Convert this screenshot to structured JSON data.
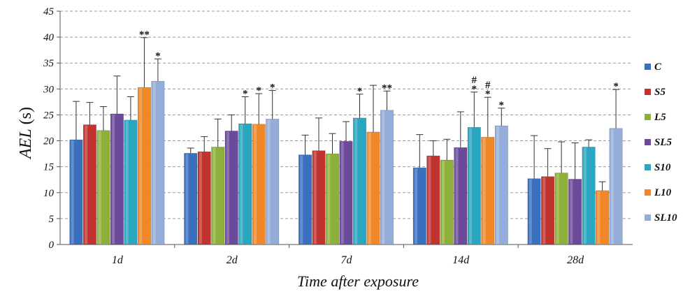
{
  "chart_data": {
    "type": "bar",
    "title": "",
    "xlabel": "Time after exposure",
    "ylabel": "AEL (s)",
    "ylabel_main": "AEL",
    "ylabel_unit": " (s)",
    "ylim": [
      0,
      45
    ],
    "yticks": [
      0,
      5,
      10,
      15,
      20,
      25,
      30,
      35,
      40,
      45
    ],
    "grid": "horizontal dashed",
    "legend_position": "right",
    "categories": [
      "1d",
      "2d",
      "7d",
      "14d",
      "28d"
    ],
    "series": [
      {
        "name": "C",
        "color": "#3a6fbf",
        "values": [
          20.2,
          17.6,
          17.3,
          14.8,
          12.7
        ],
        "error": [
          7.4,
          1.0,
          3.8,
          6.4,
          8.3
        ]
      },
      {
        "name": "S5",
        "color": "#c0332f",
        "values": [
          23.1,
          17.9,
          18.1,
          17.1,
          13.1
        ],
        "error": [
          4.3,
          2.9,
          6.3,
          2.9,
          5.4
        ]
      },
      {
        "name": "L5",
        "color": "#8db03a",
        "values": [
          22.0,
          18.8,
          17.5,
          16.3,
          13.8
        ],
        "error": [
          4.6,
          5.4,
          3.9,
          4.0,
          6.0
        ]
      },
      {
        "name": "SL5",
        "color": "#6b4a9b",
        "values": [
          25.2,
          21.9,
          19.9,
          18.7,
          12.6
        ],
        "error": [
          7.3,
          3.1,
          3.8,
          6.9,
          7.0
        ]
      },
      {
        "name": "S10",
        "color": "#2aa6c0",
        "values": [
          24.0,
          23.3,
          24.4,
          22.6,
          18.8
        ],
        "error": [
          4.5,
          5.2,
          4.6,
          6.8,
          1.4
        ]
      },
      {
        "name": "L10",
        "color": "#f0882a",
        "values": [
          30.3,
          23.2,
          21.7,
          20.7,
          10.4
        ],
        "error": [
          9.6,
          5.9,
          9.0,
          7.7,
          1.7
        ]
      },
      {
        "name": "SL10",
        "color": "#94add8",
        "values": [
          31.5,
          24.2,
          25.9,
          22.9,
          22.4
        ],
        "error": [
          4.3,
          5.5,
          3.7,
          3.4,
          7.5
        ]
      }
    ],
    "significance": [
      {
        "category": 0,
        "series": 5,
        "marks": [
          "**"
        ]
      },
      {
        "category": 0,
        "series": 6,
        "marks": [
          "*"
        ]
      },
      {
        "category": 1,
        "series": 4,
        "marks": [
          "*"
        ]
      },
      {
        "category": 1,
        "series": 5,
        "marks": [
          "*"
        ]
      },
      {
        "category": 1,
        "series": 6,
        "marks": [
          "*"
        ]
      },
      {
        "category": 2,
        "series": 4,
        "marks": [
          "*"
        ]
      },
      {
        "category": 2,
        "series": 6,
        "marks": [
          "**"
        ]
      },
      {
        "category": 3,
        "series": 4,
        "marks": [
          "#",
          "*"
        ]
      },
      {
        "category": 3,
        "series": 5,
        "marks": [
          "#",
          "*"
        ]
      },
      {
        "category": 3,
        "series": 6,
        "marks": [
          "*"
        ]
      },
      {
        "category": 4,
        "series": 6,
        "marks": [
          "*"
        ]
      }
    ]
  }
}
